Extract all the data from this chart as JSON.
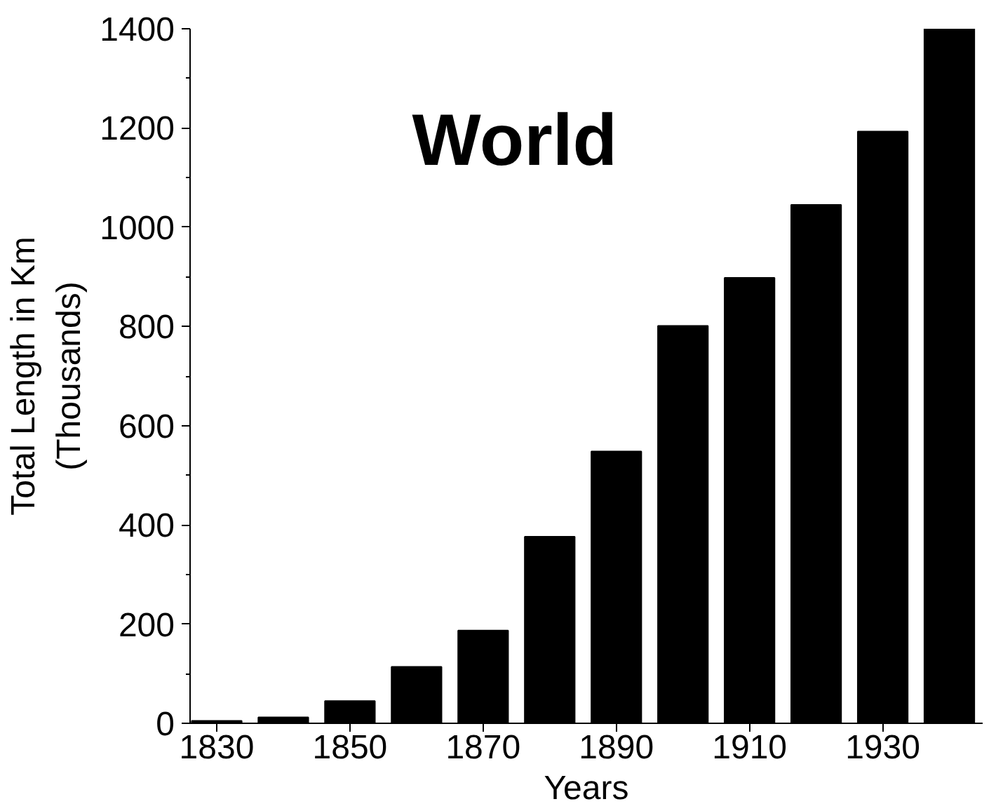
{
  "chart_data": {
    "type": "bar",
    "title": "World",
    "xlabel": "Years",
    "ylabel": "Total Length in Km\n(Thousands)",
    "x": [
      1830,
      1840,
      1850,
      1860,
      1870,
      1880,
      1890,
      1900,
      1910,
      1920,
      1930,
      1940
    ],
    "values": [
      5,
      12,
      45,
      114,
      187,
      376,
      548,
      801,
      898,
      1045,
      1193,
      1400
    ],
    "color": "#000000",
    "xlim": [
      1826,
      1945
    ],
    "xticks": [
      1830,
      1850,
      1870,
      1890,
      1910,
      1930
    ],
    "ylim": [
      0,
      1400
    ],
    "yticks": [
      0,
      200,
      400,
      600,
      800,
      1000,
      1200,
      1400
    ],
    "grid": false
  }
}
